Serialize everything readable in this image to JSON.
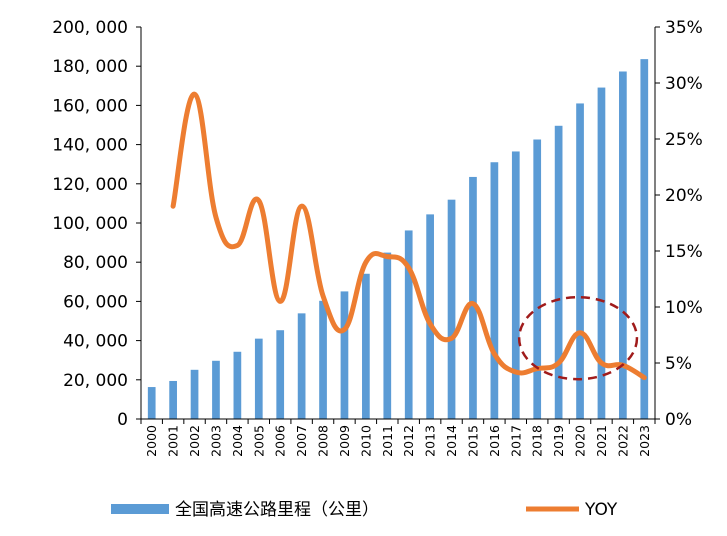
{
  "chart_data": {
    "type": "bar+line",
    "categories": [
      "2000",
      "2001",
      "2002",
      "2003",
      "2004",
      "2005",
      "2006",
      "2007",
      "2008",
      "2009",
      "2010",
      "2011",
      "2012",
      "2013",
      "2014",
      "2015",
      "2016",
      "2017",
      "2018",
      "2019",
      "2020",
      "2021",
      "2022",
      "2023"
    ],
    "series": [
      {
        "name": "全国高速公路里程（公里）",
        "type": "bar",
        "axis": "left",
        "color": "#5B9BD5",
        "values": [
          16300,
          19400,
          25100,
          29700,
          34300,
          41000,
          45300,
          53900,
          60300,
          65100,
          74100,
          84900,
          96200,
          104400,
          111900,
          123500,
          131000,
          136500,
          142600,
          149600,
          161000,
          169100,
          177300,
          183600
        ]
      },
      {
        "name": "YOY",
        "type": "line",
        "axis": "right",
        "color": "#ED7D31",
        "values": [
          null,
          0.19,
          0.29,
          0.18,
          0.155,
          0.195,
          0.105,
          0.19,
          0.11,
          0.08,
          0.14,
          0.145,
          0.135,
          0.085,
          0.072,
          0.103,
          0.058,
          0.042,
          0.045,
          0.05,
          0.077,
          0.05,
          0.048,
          0.037
        ]
      }
    ],
    "left_axis": {
      "min": 0,
      "max": 200000,
      "step": 20000,
      "tick_labels": [
        "0",
        "20, 000",
        "40, 000",
        "60, 000",
        "80, 000",
        "100, 000",
        "120, 000",
        "140, 000",
        "160, 000",
        "180, 000",
        "200, 000"
      ]
    },
    "right_axis": {
      "min": 0,
      "max": 0.35,
      "step": 0.05,
      "tick_labels": [
        "0%",
        "5%",
        "10%",
        "15%",
        "20%",
        "25%",
        "30%",
        "35%"
      ]
    },
    "annotation": {
      "type": "dashed-ellipse",
      "color": "#A01B1B",
      "x_range": [
        "2018",
        "2022"
      ],
      "y_center_pct": 0.065
    },
    "legend": {
      "position": "bottom",
      "entries": [
        "全国高速公路里程（公里）",
        "YOY"
      ]
    },
    "grid": false
  }
}
